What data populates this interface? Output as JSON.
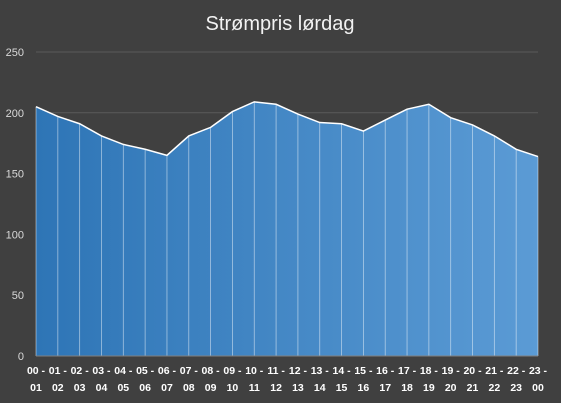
{
  "chart_data": {
    "type": "area",
    "title": "Strømpris lørdag",
    "xlabel": "",
    "ylabel": "",
    "ylim": [
      0,
      250
    ],
    "yticks": [
      0,
      50,
      100,
      150,
      200,
      250
    ],
    "grid": true,
    "legend": "none",
    "categories": [
      [
        "00 -",
        "01"
      ],
      [
        "01 -",
        "02"
      ],
      [
        "02 -",
        "03"
      ],
      [
        "03 -",
        "04"
      ],
      [
        "04 -",
        "05"
      ],
      [
        "05 -",
        "06"
      ],
      [
        "06 -",
        "07"
      ],
      [
        "07 -",
        "08"
      ],
      [
        "08 -",
        "09"
      ],
      [
        "09 -",
        "10"
      ],
      [
        "10 -",
        "11"
      ],
      [
        "11 -",
        "12"
      ],
      [
        "12 -",
        "13"
      ],
      [
        "13 -",
        "14"
      ],
      [
        "14 -",
        "15"
      ],
      [
        "15 -",
        "16"
      ],
      [
        "16 -",
        "17"
      ],
      [
        "17 -",
        "18"
      ],
      [
        "18 -",
        "19"
      ],
      [
        "19 -",
        "20"
      ],
      [
        "20 -",
        "21"
      ],
      [
        "21 -",
        "22"
      ],
      [
        "22 -",
        "23"
      ],
      [
        "23 -",
        "00"
      ]
    ],
    "values": [
      205,
      197,
      191,
      181,
      174,
      170,
      165,
      181,
      188,
      201,
      209,
      207,
      199,
      192,
      191,
      185,
      194,
      203,
      207,
      196,
      190,
      181,
      170,
      164
    ],
    "colors": {
      "fill_start": "#2e75b6",
      "fill_end": "#5b9bd5",
      "line": "#ffffff",
      "separator": "#ffffff",
      "background": "#404040",
      "grid": "#5a5a5a"
    }
  }
}
